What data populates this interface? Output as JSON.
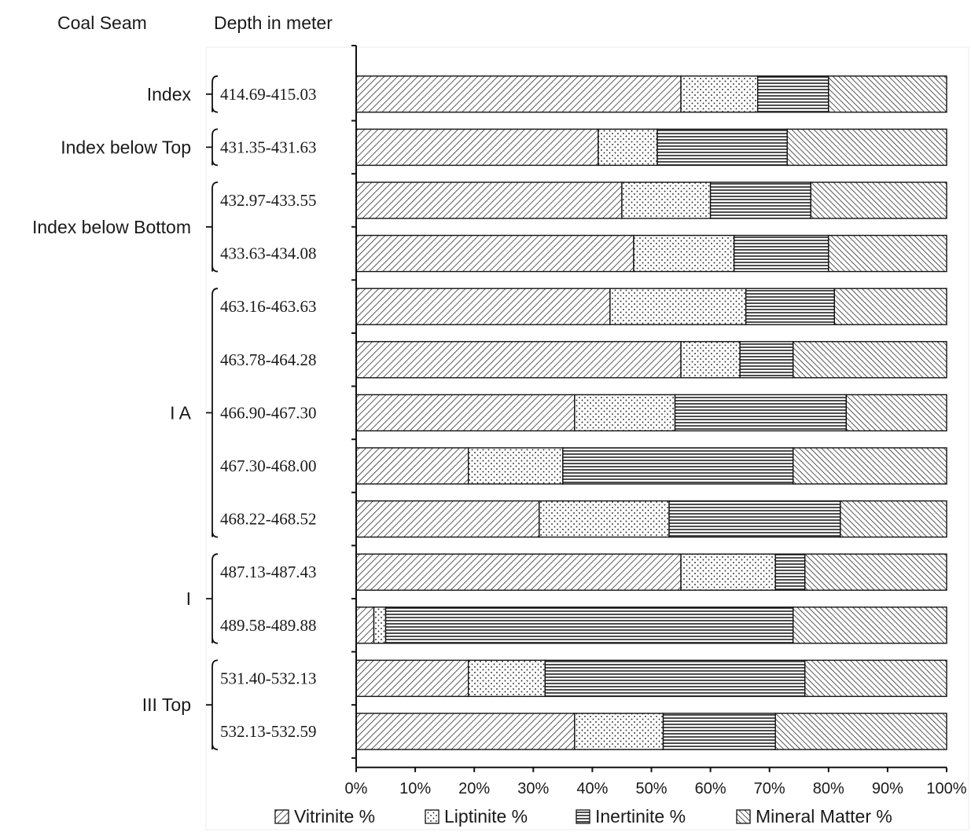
{
  "header": {
    "coal_seam_label": "Coal Seam",
    "depth_label": "Depth in meter"
  },
  "chart_data": {
    "type": "bar",
    "orientation": "horizontal",
    "stacked": "100%",
    "xlim": [
      0,
      100
    ],
    "xticks": [
      "0%",
      "10%",
      "20%",
      "30%",
      "40%",
      "50%",
      "60%",
      "70%",
      "80%",
      "90%",
      "100%"
    ],
    "grid": false,
    "legend_position": "bottom",
    "series_names": [
      "Vitrinite %",
      "Liptinite %",
      "Inertinite %",
      "Mineral Matter  %"
    ],
    "patterns": [
      "diagonal-hatch",
      "dots",
      "horizontal-lines",
      "dense-diagonal-hatch"
    ],
    "groups": [
      {
        "seam": "Index",
        "first": 0,
        "last": 0
      },
      {
        "seam": "Index below Top",
        "first": 1,
        "last": 1
      },
      {
        "seam": "Index below Bottom",
        "first": 2,
        "last": 3
      },
      {
        "seam": "I A",
        "first": 4,
        "last": 8
      },
      {
        "seam": "I",
        "first": 9,
        "last": 10
      },
      {
        "seam": "III Top",
        "first": 11,
        "last": 12
      }
    ],
    "categories": [
      "414.69-415.03",
      "431.35-431.63",
      "432.97-433.55",
      "433.63-434.08",
      "463.16-463.63",
      "463.78-464.28",
      "466.90-467.30",
      "467.30-468.00",
      "468.22-468.52",
      "487.13-487.43",
      "489.58-489.88",
      "531.40-532.13",
      "532.13-532.59"
    ],
    "series": [
      {
        "name": "Vitrinite %",
        "values": [
          55,
          41,
          45,
          47,
          43,
          55,
          37,
          19,
          31,
          55,
          3,
          19,
          37
        ]
      },
      {
        "name": "Liptinite %",
        "values": [
          13,
          10,
          15,
          17,
          23,
          10,
          17,
          16,
          22,
          16,
          2,
          13,
          15
        ]
      },
      {
        "name": "Inertinite %",
        "values": [
          12,
          22,
          17,
          16,
          15,
          9,
          29,
          39,
          29,
          5,
          69,
          44,
          19
        ]
      },
      {
        "name": "Mineral Matter  %",
        "values": [
          20,
          27,
          23,
          20,
          19,
          26,
          17,
          26,
          18,
          24,
          26,
          24,
          29
        ]
      }
    ]
  }
}
